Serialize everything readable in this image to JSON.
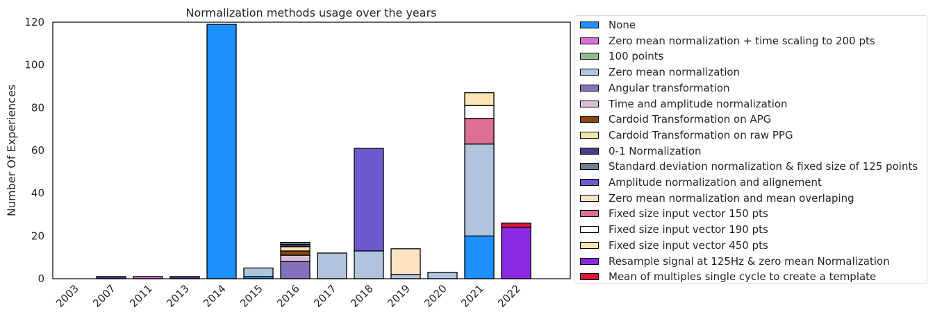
{
  "chart_data": {
    "type": "bar",
    "stacked": true,
    "title": "Normalization methods usage over the years",
    "ylabel": "Number Of Experiences",
    "xlabel": "",
    "ylim": [
      0,
      120
    ],
    "yticks": [
      0,
      20,
      40,
      60,
      80,
      100,
      120
    ],
    "grid": false,
    "legend_position": "right (outside)",
    "categories": [
      "2003",
      "2007",
      "2011",
      "2013",
      "2014",
      "2015",
      "2016",
      "2017",
      "2018",
      "2019",
      "2020",
      "2021",
      "2022"
    ],
    "series": [
      {
        "name": "None",
        "color": "#1e90ff",
        "values": [
          0,
          0,
          0,
          0,
          119,
          1,
          0,
          0,
          0,
          0,
          0,
          20,
          0
        ]
      },
      {
        "name": "Zero mean normalization + time scaling to 200 pts",
        "color": "#da70d6",
        "values": [
          0,
          0,
          1,
          0,
          0,
          0,
          0,
          0,
          0,
          0,
          0,
          0,
          0
        ]
      },
      {
        "name": "100 points",
        "color": "#8fbc8f",
        "values": [
          0,
          0,
          0,
          0,
          0,
          0,
          0,
          0,
          0,
          0,
          0,
          0,
          0
        ]
      },
      {
        "name": "Zero mean normalization",
        "color": "#b0c4de",
        "values": [
          0,
          0,
          0,
          0,
          0,
          4,
          0,
          12,
          13,
          2,
          3,
          43,
          0
        ]
      },
      {
        "name": "Angular transformation",
        "color": "#8470b8",
        "values": [
          0,
          0,
          0,
          0,
          0,
          0,
          8,
          0,
          0,
          0,
          0,
          0,
          0
        ]
      },
      {
        "name": "Time and amplitude normalization",
        "color": "#d8bfd8",
        "values": [
          0,
          0,
          0,
          0,
          0,
          0,
          3,
          0,
          0,
          0,
          0,
          0,
          0
        ]
      },
      {
        "name": "Cardoid Transformation on APG",
        "color": "#8b4513",
        "values": [
          0,
          0,
          0,
          0,
          0,
          0,
          2,
          0,
          0,
          0,
          0,
          0,
          0
        ]
      },
      {
        "name": "Cardoid Transformation on raw PPG",
        "color": "#eee8aa",
        "values": [
          0,
          0,
          0,
          0,
          0,
          0,
          2,
          0,
          0,
          0,
          0,
          0,
          0
        ]
      },
      {
        "name": "0-1 Normalization",
        "color": "#483d8b",
        "values": [
          0,
          1,
          0,
          1,
          0,
          0,
          1,
          0,
          0,
          0,
          0,
          0,
          0
        ]
      },
      {
        "name": "Standard deviation normalization & fixed size of 125 points",
        "color": "#708090",
        "values": [
          0,
          0,
          0,
          0,
          0,
          0,
          1,
          0,
          0,
          0,
          0,
          0,
          0
        ]
      },
      {
        "name": "Amplitude normalization and alignement",
        "color": "#6a5acd",
        "values": [
          0,
          0,
          0,
          0,
          0,
          0,
          0,
          0,
          48,
          0,
          0,
          0,
          0
        ]
      },
      {
        "name": "Zero mean normalization and mean overlaping",
        "color": "#ffe4c4",
        "values": [
          0,
          0,
          0,
          0,
          0,
          0,
          0,
          0,
          0,
          12,
          0,
          0,
          0
        ]
      },
      {
        "name": "Fixed size input vector 150 pts",
        "color": "#db7093",
        "values": [
          0,
          0,
          0,
          0,
          0,
          0,
          0,
          0,
          0,
          0,
          0,
          12,
          0
        ]
      },
      {
        "name": "Fixed size input vector 190 pts",
        "color": "#ffffff",
        "values": [
          0,
          0,
          0,
          0,
          0,
          0,
          0,
          0,
          0,
          0,
          0,
          6,
          0
        ]
      },
      {
        "name": "Fixed size input vector 450 pts",
        "color": "#ffe4b5",
        "values": [
          0,
          0,
          0,
          0,
          0,
          0,
          0,
          0,
          0,
          0,
          0,
          6,
          0
        ]
      },
      {
        "name": "Resample signal at 125Hz & zero mean Normalization",
        "color": "#8a2be2",
        "values": [
          0,
          0,
          0,
          0,
          0,
          0,
          0,
          0,
          0,
          0,
          0,
          0,
          24
        ]
      },
      {
        "name": "Mean of multiples single cycle to create a template",
        "color": "#dc143c",
        "values": [
          0,
          0,
          0,
          0,
          0,
          0,
          0,
          0,
          0,
          0,
          0,
          0,
          2
        ]
      }
    ]
  }
}
